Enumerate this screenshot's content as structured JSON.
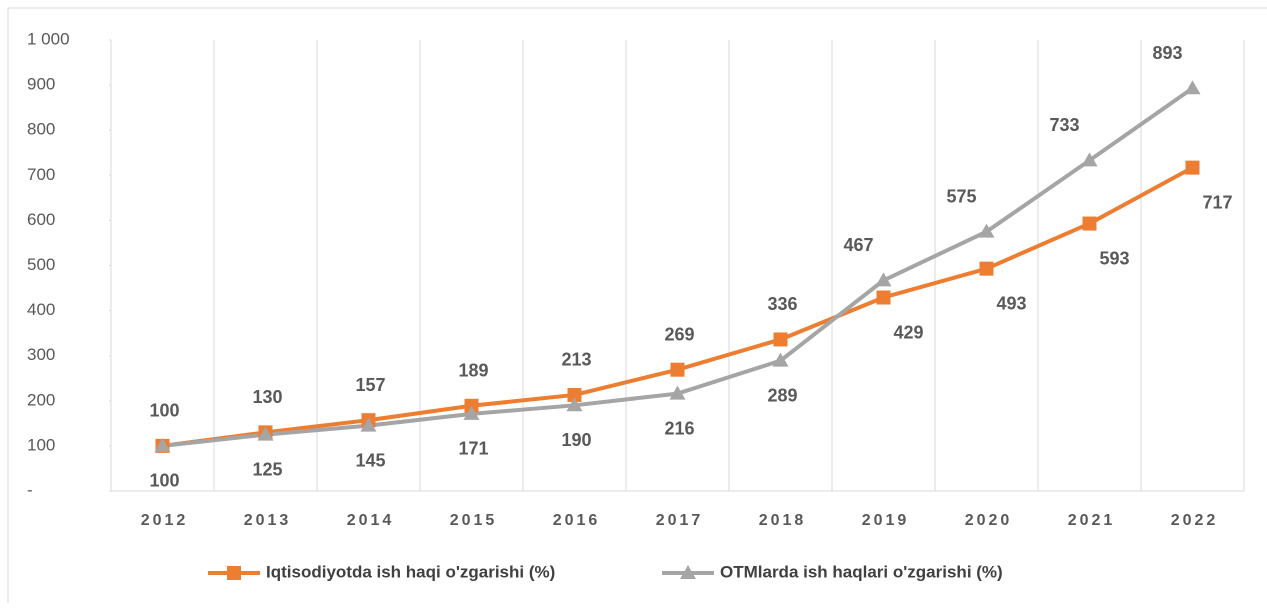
{
  "chart_data": {
    "type": "line",
    "categories": [
      "2012",
      "2013",
      "2014",
      "2015",
      "2016",
      "2017",
      "2018",
      "2019",
      "2020",
      "2021",
      "2022"
    ],
    "series": [
      {
        "name": "Iqtisodiyotda ish haqi o'zgarishi (%)",
        "color": "#ed7d31",
        "marker": "square",
        "values": [
          100,
          130,
          157,
          189,
          213,
          269,
          336,
          429,
          493,
          593,
          717
        ]
      },
      {
        "name": "OTMlarda ish haqlari o'zgarishi (%)",
        "color": "#a5a5a5",
        "marker": "triangle",
        "values": [
          100,
          125,
          145,
          171,
          190,
          216,
          289,
          467,
          575,
          733,
          893
        ]
      }
    ],
    "ylim": [
      0,
      1000
    ],
    "yticks": [
      {
        "value": 0,
        "label": "-"
      },
      100,
      200,
      300,
      400,
      500,
      600,
      700,
      800,
      900,
      {
        "value": 1000,
        "label": "1 000"
      }
    ],
    "grid": "x",
    "legend": "bottom"
  }
}
